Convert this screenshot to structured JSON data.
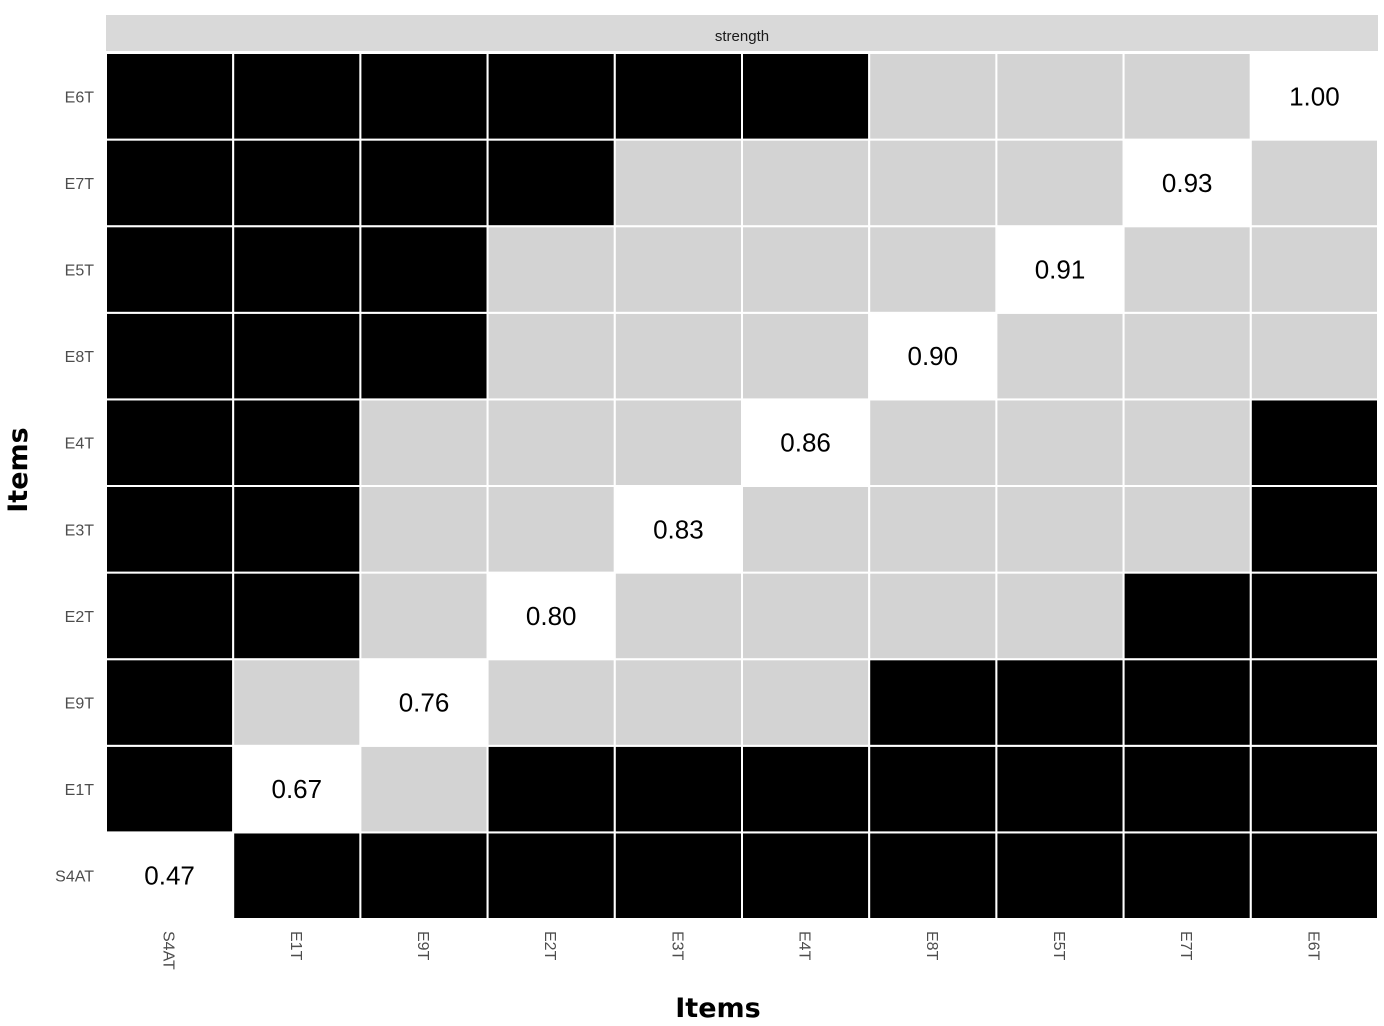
{
  "chart_data": {
    "type": "heatmap",
    "facet_label": "strength",
    "xlabel": "Items",
    "ylabel": "Items",
    "x_categories": [
      "S4AT",
      "E1T",
      "E9T",
      "E2T",
      "E3T",
      "E4T",
      "E8T",
      "E5T",
      "E7T",
      "E6T"
    ],
    "y_categories": [
      "S4AT",
      "E1T",
      "E9T",
      "E2T",
      "E3T",
      "E4T",
      "E8T",
      "E5T",
      "E7T",
      "E6T"
    ],
    "diagonal_values": [
      0.47,
      0.67,
      0.76,
      0.8,
      0.83,
      0.86,
      0.9,
      0.91,
      0.93,
      1.0
    ],
    "diagonal_labels": [
      "0.47",
      "0.67",
      "0.76",
      "0.80",
      "0.83",
      "0.86",
      "0.90",
      "0.91",
      "0.93",
      "1.00"
    ],
    "cell_states_by_row": {
      "S4AT": [
        "diag",
        "black",
        "black",
        "black",
        "black",
        "black",
        "black",
        "black",
        "black",
        "black"
      ],
      "E1T": [
        "black",
        "diag",
        "gray",
        "black",
        "black",
        "black",
        "black",
        "black",
        "black",
        "black"
      ],
      "E9T": [
        "black",
        "gray",
        "diag",
        "gray",
        "gray",
        "gray",
        "black",
        "black",
        "black",
        "black"
      ],
      "E2T": [
        "black",
        "black",
        "gray",
        "diag",
        "gray",
        "gray",
        "gray",
        "gray",
        "black",
        "black"
      ],
      "E3T": [
        "black",
        "black",
        "gray",
        "gray",
        "diag",
        "gray",
        "gray",
        "gray",
        "gray",
        "black"
      ],
      "E4T": [
        "black",
        "black",
        "gray",
        "gray",
        "gray",
        "diag",
        "gray",
        "gray",
        "gray",
        "black"
      ],
      "E8T": [
        "black",
        "black",
        "black",
        "gray",
        "gray",
        "gray",
        "diag",
        "gray",
        "gray",
        "gray"
      ],
      "E5T": [
        "black",
        "black",
        "black",
        "gray",
        "gray",
        "gray",
        "gray",
        "diag",
        "gray",
        "gray"
      ],
      "E7T": [
        "black",
        "black",
        "black",
        "black",
        "gray",
        "gray",
        "gray",
        "gray",
        "diag",
        "gray"
      ],
      "E6T": [
        "black",
        "black",
        "black",
        "black",
        "black",
        "black",
        "gray",
        "gray",
        "gray",
        "diag"
      ]
    },
    "colors": {
      "black": "#000000",
      "gray": "#d3d3d3",
      "diag": "#ffffff",
      "strip": "#d9d9d9",
      "grid_line": "#ffffff"
    },
    "grid": false,
    "legend": "none"
  }
}
